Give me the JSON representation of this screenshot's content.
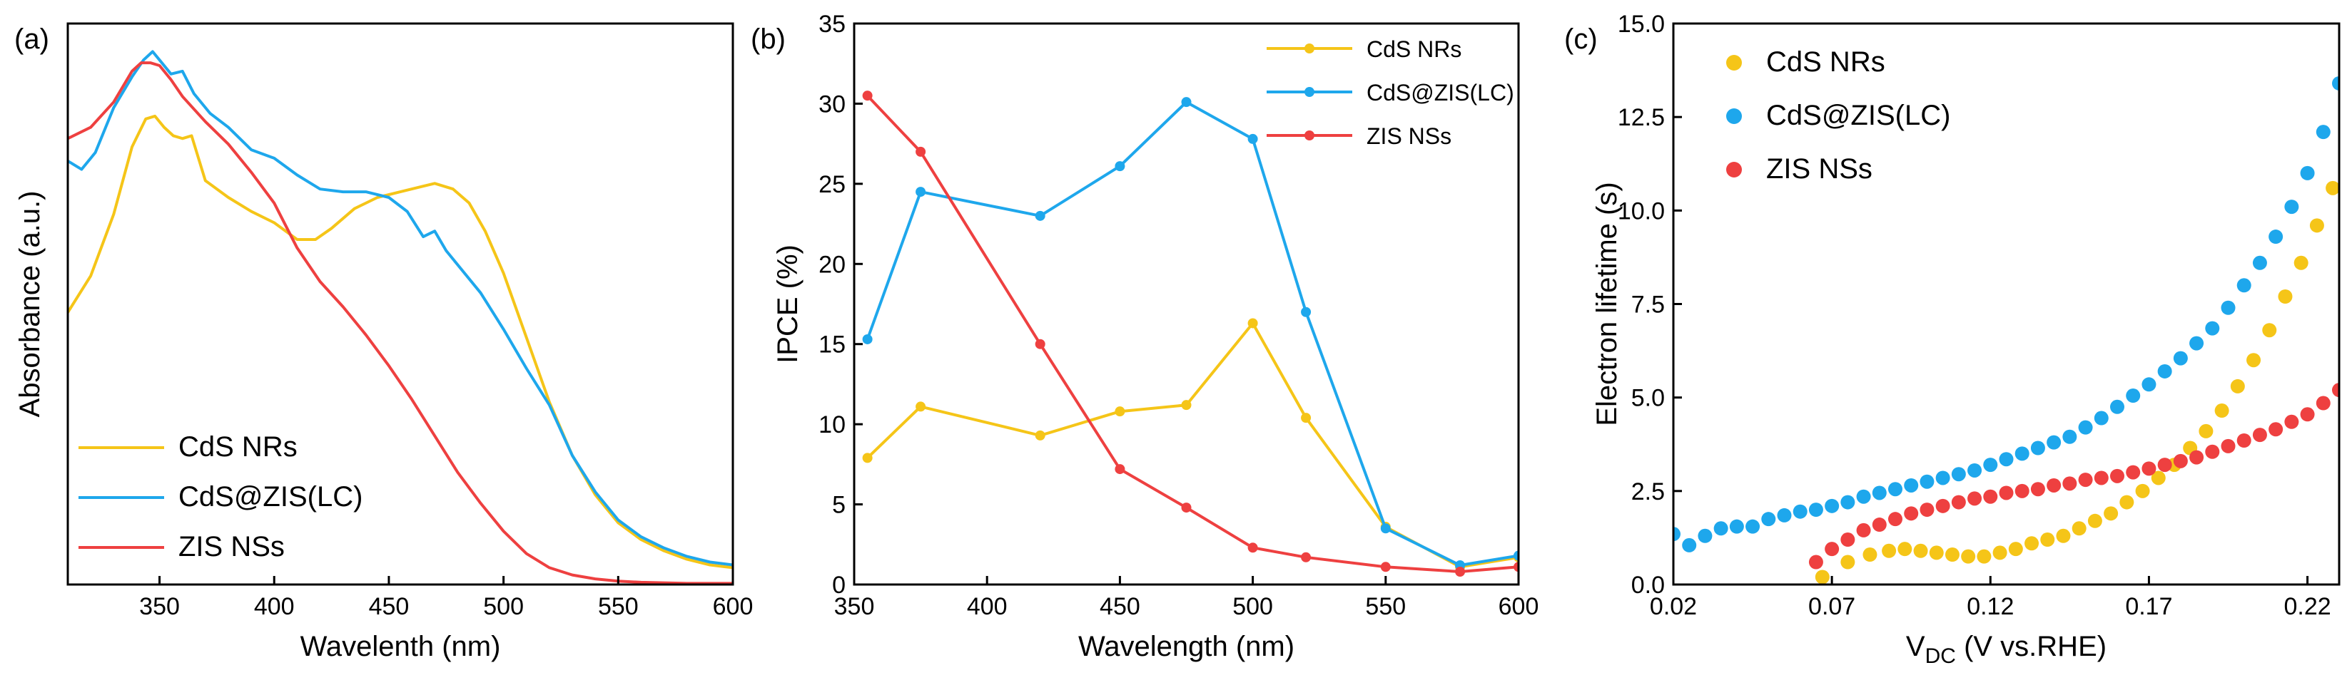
{
  "chart_data": [
    {
      "panel_label": "(a)",
      "type": "line",
      "title": "",
      "xlabel": "Wavelenth (nm)",
      "ylabel": "Absorbance (a.u.)",
      "xlim": [
        310,
        600
      ],
      "ylim": [
        0,
        1
      ],
      "xticks": [
        350,
        400,
        450,
        500,
        550,
        600
      ],
      "xtick_labels": [
        "350",
        "400",
        "450",
        "500",
        "550",
        "600"
      ],
      "show_y_ticks": false,
      "legend_position": "bottom-left",
      "series": [
        {
          "name": "CdS NRs",
          "color": "#F5C518",
          "marker": "none",
          "x": [
            310,
            320,
            330,
            338,
            344,
            348,
            352,
            356,
            360,
            364,
            370,
            380,
            390,
            400,
            410,
            418,
            425,
            435,
            445,
            455,
            465,
            470,
            478,
            485,
            492,
            500,
            510,
            520,
            530,
            540,
            550,
            560,
            570,
            580,
            590,
            600
          ],
          "y": [
            0.485,
            0.55,
            0.66,
            0.78,
            0.83,
            0.835,
            0.815,
            0.8,
            0.795,
            0.8,
            0.72,
            0.69,
            0.665,
            0.645,
            0.615,
            0.615,
            0.635,
            0.67,
            0.69,
            0.7,
            0.71,
            0.715,
            0.705,
            0.68,
            0.63,
            0.555,
            0.44,
            0.325,
            0.23,
            0.16,
            0.11,
            0.08,
            0.06,
            0.045,
            0.035,
            0.03
          ]
        },
        {
          "name": "CdS@ZIS(LC)",
          "color": "#1EA7EC",
          "marker": "none",
          "x": [
            310,
            316,
            322,
            330,
            338,
            343,
            347,
            350,
            355,
            360,
            365,
            372,
            380,
            390,
            400,
            410,
            420,
            430,
            440,
            450,
            458,
            465,
            470,
            475,
            480,
            490,
            500,
            510,
            520,
            530,
            540,
            550,
            560,
            570,
            580,
            590,
            600
          ],
          "y": [
            0.755,
            0.74,
            0.77,
            0.85,
            0.905,
            0.935,
            0.95,
            0.935,
            0.91,
            0.915,
            0.875,
            0.84,
            0.815,
            0.775,
            0.76,
            0.73,
            0.705,
            0.7,
            0.7,
            0.69,
            0.665,
            0.62,
            0.63,
            0.595,
            0.57,
            0.52,
            0.455,
            0.385,
            0.32,
            0.23,
            0.165,
            0.115,
            0.085,
            0.065,
            0.05,
            0.04,
            0.035
          ]
        },
        {
          "name": "ZIS NSs",
          "color": "#EE4040",
          "marker": "none",
          "x": [
            310,
            320,
            330,
            338,
            342,
            346,
            350,
            355,
            360,
            370,
            380,
            390,
            400,
            410,
            420,
            430,
            440,
            450,
            460,
            470,
            480,
            490,
            500,
            510,
            520,
            530,
            540,
            550,
            560,
            570,
            580,
            590,
            600
          ],
          "y": [
            0.795,
            0.815,
            0.86,
            0.915,
            0.93,
            0.93,
            0.925,
            0.9,
            0.87,
            0.825,
            0.785,
            0.735,
            0.68,
            0.6,
            0.54,
            0.495,
            0.445,
            0.39,
            0.33,
            0.265,
            0.2,
            0.145,
            0.095,
            0.055,
            0.03,
            0.017,
            0.01,
            0.006,
            0.004,
            0.003,
            0.002,
            0.002,
            0.002
          ]
        }
      ]
    },
    {
      "panel_label": "(b)",
      "type": "line",
      "title": "",
      "xlabel": "Wavelength (nm)",
      "ylabel": "IPCE (%)",
      "xlim": [
        350,
        600
      ],
      "ylim": [
        0,
        35
      ],
      "xticks": [
        350,
        400,
        450,
        500,
        550,
        600
      ],
      "xtick_labels": [
        "350",
        "400",
        "450",
        "500",
        "550",
        "600"
      ],
      "yticks": [
        0,
        5,
        10,
        15,
        20,
        25,
        30,
        35
      ],
      "ytick_labels": [
        "0",
        "5",
        "10",
        "15",
        "20",
        "25",
        "30",
        "35"
      ],
      "legend_position": "top-right",
      "series": [
        {
          "name": "CdS NRs",
          "color": "#F5C518",
          "marker": "circle",
          "x": [
            355,
            375,
            420,
            450,
            475,
            500,
            520,
            550,
            578,
            600
          ],
          "y": [
            7.9,
            11.1,
            9.3,
            10.8,
            11.2,
            16.3,
            10.4,
            3.6,
            1.1,
            1.7
          ]
        },
        {
          "name": "CdS@ZIS(LC)",
          "color": "#1EA7EC",
          "marker": "circle",
          "x": [
            355,
            375,
            420,
            450,
            475,
            500,
            520,
            550,
            578,
            600
          ],
          "y": [
            15.3,
            24.5,
            23.0,
            26.1,
            30.1,
            27.8,
            17.0,
            3.5,
            1.2,
            1.8
          ]
        },
        {
          "name": "ZIS NSs",
          "color": "#EE4040",
          "marker": "circle",
          "x": [
            355,
            375,
            420,
            450,
            475,
            500,
            520,
            550,
            578,
            600
          ],
          "y": [
            30.5,
            27.0,
            15.0,
            7.2,
            4.8,
            2.3,
            1.7,
            1.1,
            0.8,
            1.1
          ]
        }
      ]
    },
    {
      "panel_label": "(c)",
      "type": "scatter",
      "title": "",
      "xlabel": "V",
      "xlabel_subscript": "DC",
      "xlabel_suffix": " (V vs.RHE)",
      "ylabel": "Electron lifetime (s)",
      "xlim": [
        0.02,
        0.23
      ],
      "ylim": [
        0,
        15
      ],
      "xticks": [
        0.02,
        0.07,
        0.12,
        0.17,
        0.22
      ],
      "xtick_labels": [
        "0.02",
        "0.07",
        "0.12",
        "0.17",
        "0.22"
      ],
      "yticks": [
        0,
        2.5,
        5,
        7.5,
        10,
        12.5,
        15
      ],
      "ytick_labels": [
        "0.0",
        "2.5",
        "5.0",
        "7.5",
        "10.0",
        "12.5",
        "15.0"
      ],
      "legend_position": "top-left",
      "series": [
        {
          "name": "CdS NRs",
          "color": "#F5C518",
          "marker": "circle",
          "x": [
            0.067,
            0.075,
            0.082,
            0.088,
            0.093,
            0.098,
            0.103,
            0.108,
            0.113,
            0.118,
            0.123,
            0.128,
            0.133,
            0.138,
            0.143,
            0.148,
            0.153,
            0.158,
            0.163,
            0.168,
            0.173,
            0.178,
            0.183,
            0.188,
            0.193,
            0.198,
            0.203,
            0.208,
            0.213,
            0.218,
            0.223,
            0.228
          ],
          "y": [
            0.2,
            0.6,
            0.8,
            0.9,
            0.95,
            0.9,
            0.85,
            0.8,
            0.75,
            0.75,
            0.85,
            0.95,
            1.1,
            1.2,
            1.3,
            1.5,
            1.7,
            1.9,
            2.2,
            2.5,
            2.85,
            3.2,
            3.65,
            4.1,
            4.65,
            5.3,
            6.0,
            6.8,
            7.7,
            8.6,
            9.6,
            10.6
          ]
        },
        {
          "name": "CdS@ZIS(LC)",
          "color": "#1EA7EC",
          "marker": "circle",
          "x": [
            0.02,
            0.025,
            0.03,
            0.035,
            0.04,
            0.045,
            0.05,
            0.055,
            0.06,
            0.065,
            0.07,
            0.075,
            0.08,
            0.085,
            0.09,
            0.095,
            0.1,
            0.105,
            0.11,
            0.115,
            0.12,
            0.125,
            0.13,
            0.135,
            0.14,
            0.145,
            0.15,
            0.155,
            0.16,
            0.165,
            0.17,
            0.175,
            0.18,
            0.185,
            0.19,
            0.195,
            0.2,
            0.205,
            0.21,
            0.215,
            0.22,
            0.225,
            0.23
          ],
          "y": [
            1.35,
            1.05,
            1.3,
            1.5,
            1.55,
            1.55,
            1.75,
            1.85,
            1.95,
            2.0,
            2.1,
            2.2,
            2.35,
            2.45,
            2.55,
            2.65,
            2.75,
            2.85,
            2.95,
            3.05,
            3.2,
            3.35,
            3.5,
            3.65,
            3.8,
            3.95,
            4.2,
            4.45,
            4.75,
            5.05,
            5.35,
            5.7,
            6.05,
            6.45,
            6.85,
            7.4,
            8.0,
            8.6,
            9.3,
            10.1,
            11.0,
            12.1,
            13.4
          ]
        },
        {
          "name": "ZIS NSs",
          "color": "#EE4040",
          "marker": "circle",
          "x": [
            0.065,
            0.07,
            0.075,
            0.08,
            0.085,
            0.09,
            0.095,
            0.1,
            0.105,
            0.11,
            0.115,
            0.12,
            0.125,
            0.13,
            0.135,
            0.14,
            0.145,
            0.15,
            0.155,
            0.16,
            0.165,
            0.17,
            0.175,
            0.18,
            0.185,
            0.19,
            0.195,
            0.2,
            0.205,
            0.21,
            0.215,
            0.22,
            0.225,
            0.23
          ],
          "y": [
            0.6,
            0.95,
            1.2,
            1.45,
            1.6,
            1.75,
            1.9,
            2.0,
            2.1,
            2.2,
            2.3,
            2.35,
            2.45,
            2.5,
            2.55,
            2.65,
            2.7,
            2.8,
            2.85,
            2.9,
            3.0,
            3.1,
            3.2,
            3.3,
            3.4,
            3.55,
            3.7,
            3.85,
            4.0,
            4.15,
            4.35,
            4.55,
            4.85,
            5.2
          ]
        }
      ]
    }
  ]
}
